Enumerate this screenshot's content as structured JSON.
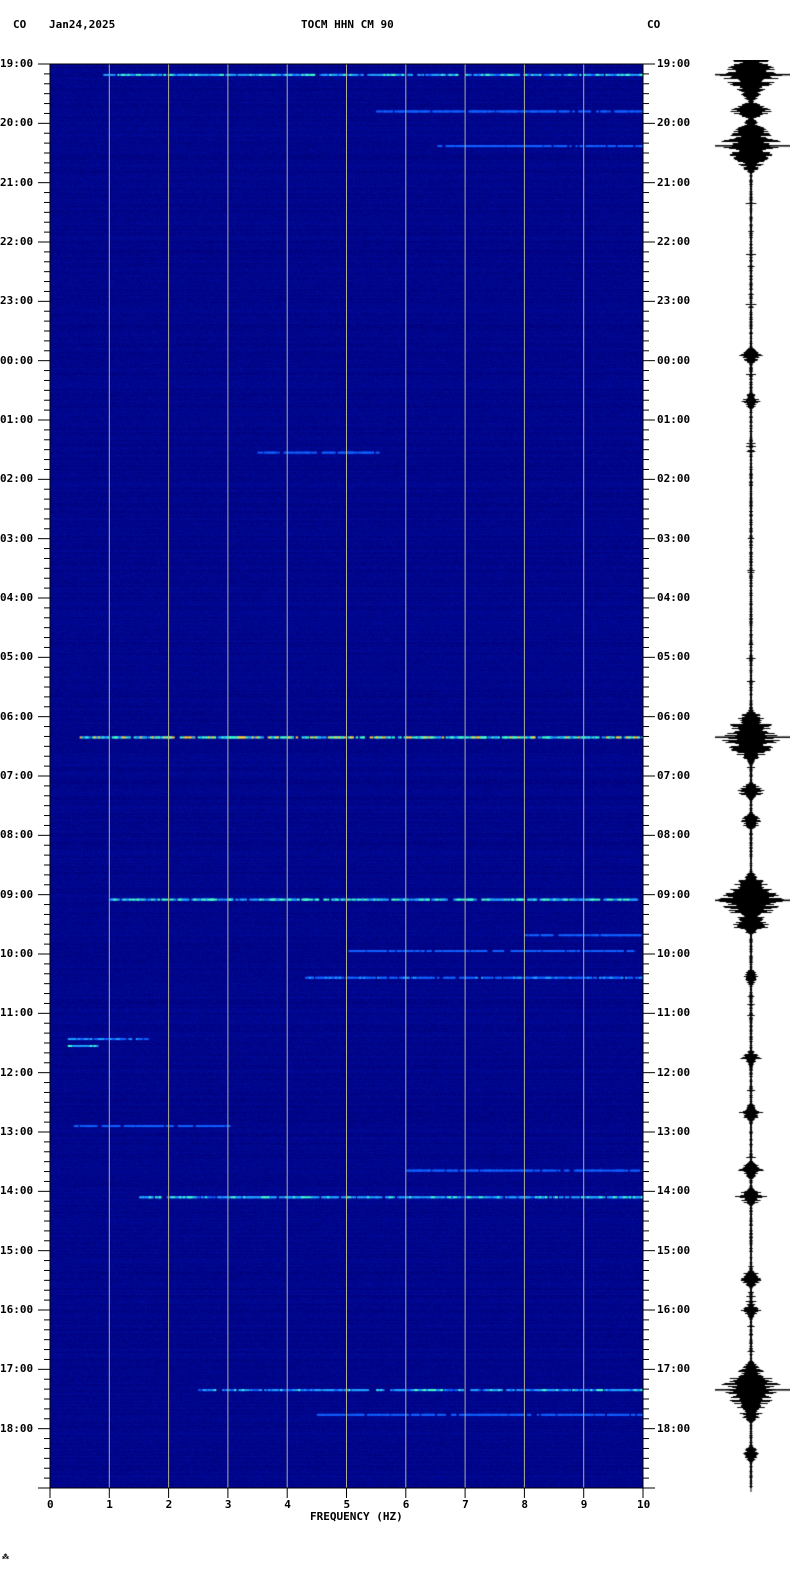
{
  "header": {
    "left_code": "CO",
    "date": "Jan24,2025",
    "title": "TOCM HHN CM 90",
    "right_code": "CO"
  },
  "footer_mark": "⁂",
  "chart_data": {
    "type": "heatmap",
    "title": "TOCM HHN CM 90",
    "xlabel": "FREQUENCY (HZ)",
    "ylabel": "",
    "xlim": [
      0,
      10
    ],
    "x_ticks": [
      "0",
      "1",
      "2",
      "3",
      "4",
      "5",
      "6",
      "7",
      "8",
      "9",
      "10"
    ],
    "y_ticks": [
      "19:00",
      "20:00",
      "21:00",
      "22:00",
      "23:00",
      "00:00",
      "01:00",
      "02:00",
      "03:00",
      "04:00",
      "05:00",
      "06:00",
      "07:00",
      "08:00",
      "09:00",
      "10:00",
      "11:00",
      "12:00",
      "13:00",
      "14:00",
      "15:00",
      "16:00",
      "17:00",
      "18:00"
    ],
    "y_range_hours": 24,
    "grid": "vertical lines at each 1 Hz",
    "background_color": "#0a0a9a",
    "events": [
      {
        "time": "19:10",
        "fmin": 0.9,
        "fmax": 10,
        "intensity": 0.75
      },
      {
        "time": "19:47",
        "fmin": 5.5,
        "fmax": 10,
        "intensity": 0.4
      },
      {
        "time": "20:22",
        "fmin": 6.5,
        "fmax": 10,
        "intensity": 0.3
      },
      {
        "time": "01:32",
        "fmin": 3.5,
        "fmax": 5.5,
        "intensity": 0.3
      },
      {
        "time": "06:20",
        "fmin": 0.5,
        "fmax": 10,
        "intensity": 0.95
      },
      {
        "time": "09:04",
        "fmin": 1.0,
        "fmax": 10,
        "intensity": 0.85
      },
      {
        "time": "09:40",
        "fmin": 8.0,
        "fmax": 10,
        "intensity": 0.35
      },
      {
        "time": "09:56",
        "fmin": 5.0,
        "fmax": 9.8,
        "intensity": 0.35
      },
      {
        "time": "10:23",
        "fmin": 4.3,
        "fmax": 10,
        "intensity": 0.5
      },
      {
        "time": "11:25",
        "fmin": 0.3,
        "fmax": 1.6,
        "intensity": 0.55
      },
      {
        "time": "11:32",
        "fmin": 0.3,
        "fmax": 0.8,
        "intensity": 0.75
      },
      {
        "time": "12:53",
        "fmin": 0.4,
        "fmax": 3.0,
        "intensity": 0.25
      },
      {
        "time": "13:38",
        "fmin": 6.0,
        "fmax": 10,
        "intensity": 0.25
      },
      {
        "time": "14:05",
        "fmin": 1.5,
        "fmax": 10,
        "intensity": 0.75
      },
      {
        "time": "17:20",
        "fmin": 2.5,
        "fmax": 10,
        "intensity": 0.7
      },
      {
        "time": "17:45",
        "fmin": 4.5,
        "fmax": 10,
        "intensity": 0.35
      }
    ],
    "trace_bursts": [
      {
        "time": "19:10",
        "amp": 0.95
      },
      {
        "time": "19:47",
        "amp": 0.7
      },
      {
        "time": "20:22",
        "amp": 0.95
      },
      {
        "time": "23:55",
        "amp": 0.35
      },
      {
        "time": "00:40",
        "amp": 0.3
      },
      {
        "time": "06:20",
        "amp": 1.0
      },
      {
        "time": "07:15",
        "amp": 0.45
      },
      {
        "time": "07:45",
        "amp": 0.4
      },
      {
        "time": "09:05",
        "amp": 1.0
      },
      {
        "time": "09:30",
        "amp": 0.65
      },
      {
        "time": "10:23",
        "amp": 0.3
      },
      {
        "time": "11:45",
        "amp": 0.3
      },
      {
        "time": "12:40",
        "amp": 0.4
      },
      {
        "time": "13:38",
        "amp": 0.4
      },
      {
        "time": "14:05",
        "amp": 0.5
      },
      {
        "time": "15:28",
        "amp": 0.45
      },
      {
        "time": "16:00",
        "amp": 0.3
      },
      {
        "time": "17:20",
        "amp": 1.0
      },
      {
        "time": "17:45",
        "amp": 0.35
      },
      {
        "time": "18:25",
        "amp": 0.3
      }
    ]
  }
}
